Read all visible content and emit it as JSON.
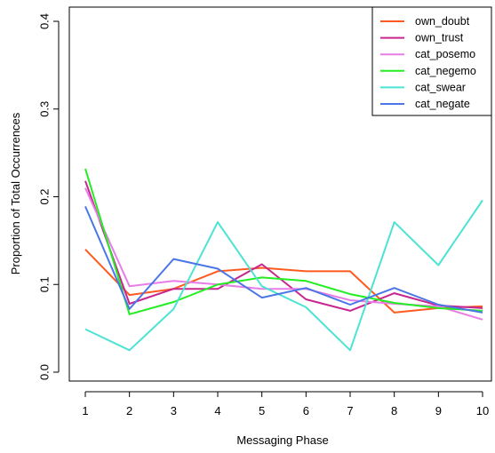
{
  "chart_data": {
    "type": "line",
    "title": "",
    "xlabel": "Messaging Phase",
    "ylabel": "Proportion of Total Occurrences",
    "x": [
      1,
      2,
      3,
      4,
      5,
      6,
      7,
      8,
      9,
      10
    ],
    "xlim": [
      1,
      10
    ],
    "ylim": [
      0.0,
      0.4
    ],
    "y_ticks": [
      0.0,
      0.1,
      0.2,
      0.3,
      0.4
    ],
    "y_tick_labels": [
      "0.0",
      "0.1",
      "0.2",
      "0.3",
      "0.4"
    ],
    "x_tick_labels": [
      "1",
      "2",
      "3",
      "4",
      "5",
      "6",
      "7",
      "8",
      "9",
      "10"
    ],
    "grid": false,
    "legend_position": "top-right",
    "series": [
      {
        "name": "own_doubt",
        "color": "#ff5a1f",
        "values": [
          0.14,
          0.088,
          0.095,
          0.115,
          0.119,
          0.115,
          0.115,
          0.068,
          0.073,
          0.075
        ]
      },
      {
        "name": "own_trust",
        "color": "#c8268f",
        "values": [
          0.218,
          0.078,
          0.095,
          0.095,
          0.123,
          0.083,
          0.07,
          0.09,
          0.076,
          0.073
        ]
      },
      {
        "name": "cat_posemo",
        "color": "#e87de8",
        "values": [
          0.21,
          0.098,
          0.104,
          0.1,
          0.095,
          0.095,
          0.082,
          0.078,
          0.075,
          0.06
        ]
      },
      {
        "name": "cat_negemo",
        "color": "#22ee22",
        "values": [
          0.232,
          0.066,
          0.08,
          0.1,
          0.108,
          0.104,
          0.089,
          0.079,
          0.073,
          0.07
        ]
      },
      {
        "name": "cat_swear",
        "color": "#4de3d3",
        "values": [
          0.049,
          0.025,
          0.072,
          0.171,
          0.098,
          0.074,
          0.025,
          0.171,
          0.122,
          0.196
        ]
      },
      {
        "name": "cat_negate",
        "color": "#4a76e8",
        "values": [
          0.189,
          0.072,
          0.129,
          0.118,
          0.085,
          0.096,
          0.077,
          0.096,
          0.077,
          0.068
        ]
      }
    ]
  }
}
